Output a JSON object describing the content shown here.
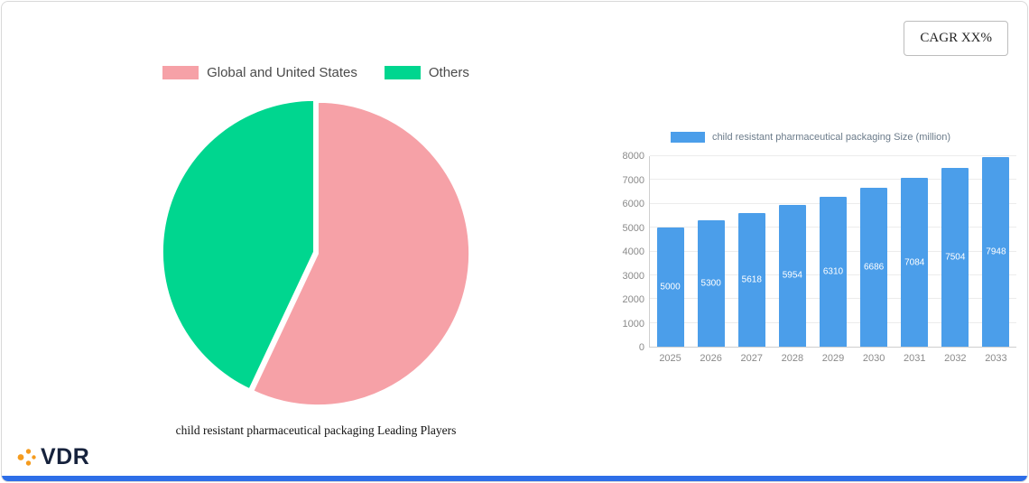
{
  "header": {
    "cagr_label": "CAGR XX%"
  },
  "logo": {
    "text": "VDR"
  },
  "colors": {
    "accent_bar": "#2d6ee8",
    "pie_pink": "#f6a1a7",
    "pie_green": "#00d68f",
    "bar_blue": "#4b9eea",
    "logo_orange": "#f59b1e",
    "logo_navy": "#16223c"
  },
  "chart_data": [
    {
      "type": "pie",
      "title": "child resistant pharmaceutical packaging Leading Players",
      "labels": [
        "Global and United States",
        "Others"
      ],
      "values": [
        57,
        43
      ],
      "colors": [
        "#f6a1a7",
        "#00d68f"
      ],
      "legend_position": "top"
    },
    {
      "type": "bar",
      "title": "child resistant pharmaceutical packaging Size (million)",
      "categories": [
        "2025",
        "2026",
        "2027",
        "2028",
        "2029",
        "2030",
        "2031",
        "2032",
        "2033"
      ],
      "values": [
        5000,
        5300,
        5618,
        5954,
        6310,
        6686,
        7084,
        7504,
        7948
      ],
      "color": "#4b9eea",
      "xlabel": "",
      "ylabel": "",
      "ylim": [
        0,
        8000
      ],
      "ytick_step": 1000,
      "grid": true,
      "legend_position": "top"
    }
  ]
}
